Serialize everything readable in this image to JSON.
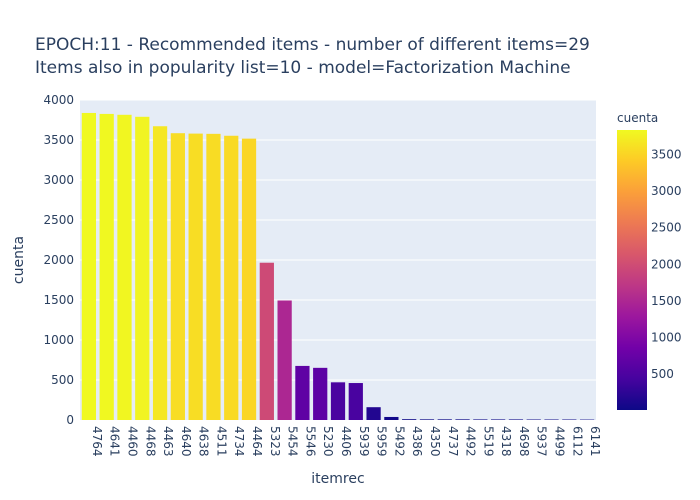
{
  "chart_data": {
    "type": "bar",
    "title_lines": [
      "EPOCH:11 - Recommended items - number of different items=29",
      "Items also in popularity list=10 - model=Factorization Machine"
    ],
    "xlabel": "itemrec",
    "ylabel": "cuenta",
    "categories": [
      "4764",
      "4641",
      "4460",
      "4468",
      "4463",
      "4640",
      "4638",
      "4511",
      "4734",
      "4464",
      "5323",
      "5454",
      "5546",
      "5230",
      "4406",
      "5939",
      "5959",
      "5492",
      "4386",
      "4350",
      "4737",
      "4492",
      "5519",
      "4318",
      "4698",
      "5937",
      "4499",
      "6112",
      "6141"
    ],
    "values": [
      3838,
      3826,
      3815,
      3790,
      3672,
      3585,
      3580,
      3577,
      3553,
      3517,
      1966,
      1494,
      676,
      652,
      471,
      462,
      160,
      38,
      10,
      8,
      8,
      8,
      7,
      7,
      7,
      6,
      6,
      6,
      5
    ],
    "ylim": [
      0,
      4000
    ],
    "y_ticks": [
      0,
      500,
      1000,
      1500,
      2000,
      2500,
      3000,
      3500,
      4000
    ],
    "colorbar": {
      "title": "cuenta",
      "min": 5,
      "max": 3838,
      "ticks": [
        500,
        1000,
        1500,
        2000,
        2500,
        3000,
        3500
      ]
    },
    "colorscale": [
      "#0d0887",
      "#46039f",
      "#7201a8",
      "#9c179e",
      "#bd3786",
      "#d8576b",
      "#ed7953",
      "#fb9f3a",
      "#fdca26",
      "#f0f921"
    ],
    "plot_bgcolor": "#e5ecf6",
    "grid": true
  }
}
